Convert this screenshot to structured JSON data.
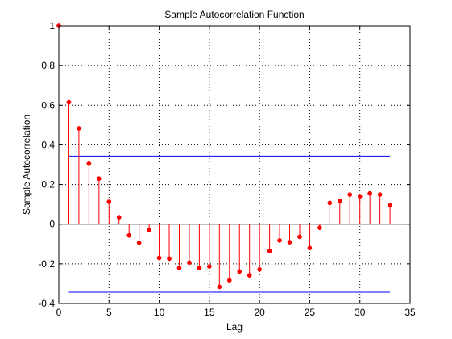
{
  "chart_data": {
    "type": "stem",
    "title": "Sample Autocorrelation Function",
    "xlabel": "Lag",
    "ylabel": "Sample Autocorrelation",
    "xlim": [
      0,
      35
    ],
    "ylim": [
      -0.4,
      1
    ],
    "xticks": [
      "0",
      "5",
      "10",
      "15",
      "20",
      "25",
      "30",
      "35"
    ],
    "yticks": [
      "-0.4",
      "-0.2",
      "0",
      "0.2",
      "0.4",
      "0.6",
      "0.8",
      "1"
    ],
    "grid": true,
    "series": [
      {
        "x": [
          0,
          1,
          2,
          3,
          4,
          5,
          6,
          7,
          8,
          9,
          10,
          11,
          12,
          13,
          14,
          15,
          16,
          17,
          18,
          19,
          20,
          21,
          22,
          23,
          24,
          25,
          26,
          27,
          28,
          29,
          30,
          31,
          32,
          33
        ],
        "y": [
          1.0,
          0.615,
          0.483,
          0.305,
          0.23,
          0.113,
          0.035,
          -0.057,
          -0.094,
          -0.03,
          -0.17,
          -0.174,
          -0.221,
          -0.194,
          -0.221,
          -0.213,
          -0.316,
          -0.283,
          -0.239,
          -0.258,
          -0.228,
          -0.135,
          -0.082,
          -0.091,
          -0.064,
          -0.12,
          -0.018,
          0.107,
          0.117,
          0.149,
          0.14,
          0.155,
          0.149,
          0.095
        ],
        "color": "#ff0000"
      }
    ],
    "confidence_bounds": {
      "upper": 0.343,
      "lower": -0.343,
      "x_range": [
        1,
        33
      ],
      "color": "#0000ff"
    }
  }
}
